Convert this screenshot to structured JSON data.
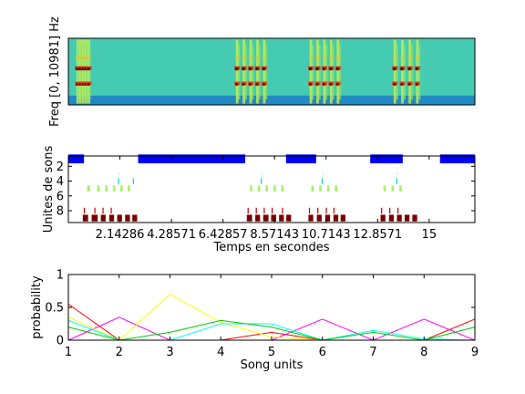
{
  "chart_data": [
    {
      "type": "heatmap",
      "ylabel": "Freq [0, 10981] Hz",
      "colormap": [
        "#0a2a8c",
        "#1f8fd0",
        "#3fc9b8",
        "#7ee07a",
        "#e9f23a",
        "#f29a22",
        "#c81414",
        "#5a0000"
      ],
      "background_level": 0.3,
      "noise_floor_level": 0.12,
      "bursts": [
        {
          "start": 0.2,
          "end": 0.55,
          "calls": 5
        },
        {
          "start": 4.15,
          "end": 5.0,
          "calls": 5
        },
        {
          "start": 6.0,
          "end": 6.85,
          "calls": 5
        },
        {
          "start": 8.1,
          "end": 8.85,
          "calls": 4
        }
      ],
      "xlim": [
        0,
        10.2
      ],
      "ylim": [
        0,
        1
      ]
    },
    {
      "type": "scatter",
      "xlabel": "Temps en secondes",
      "ylabel": "Unites de sons",
      "xticks": [
        2.14286,
        4.28571,
        6.42857,
        8.57143,
        10.7143,
        12.8571,
        15
      ],
      "xtick_labels": [
        "2.14286",
        "4.28571",
        "6.42857",
        "8.57143",
        "10.7143",
        "12.8571",
        "15"
      ],
      "yticks": [
        2,
        4,
        6,
        8
      ],
      "xlim": [
        0,
        16.9
      ],
      "ylim": [
        0.6,
        9.6
      ],
      "series": [
        {
          "unit": 1,
          "color": "#0000ff",
          "height": 1.2,
          "segments": [
            [
              0,
              0.65
            ],
            [
              2.9,
              7.35
            ],
            [
              9.05,
              10.3
            ],
            [
              12.55,
              13.9
            ],
            [
              15.45,
              16.9
            ]
          ]
        },
        {
          "unit": 3,
          "color": "#c8f0ff",
          "height": 0.4,
          "segments": [
            [
              2.1,
              2.12
            ],
            [
              8.03,
              8.05
            ],
            [
              10.56,
              10.58
            ],
            [
              13.65,
              13.67
            ]
          ]
        },
        {
          "unit": 4,
          "color": "#00dfa0",
          "height": 0.8,
          "segments": [
            [
              2.06,
              2.1
            ],
            [
              2.68,
              2.72
            ],
            [
              8.0,
              8.04
            ],
            [
              10.53,
              10.57
            ],
            [
              13.63,
              13.67
            ]
          ]
        },
        {
          "unit": 5,
          "color": "#a8f06a",
          "height": 0.8,
          "segments": [
            [
              0.78,
              0.9
            ],
            [
              1.2,
              1.3
            ],
            [
              1.53,
              1.63
            ],
            [
              1.85,
              1.95
            ],
            [
              2.16,
              2.26
            ],
            [
              2.46,
              2.56
            ],
            [
              7.55,
              7.65
            ],
            [
              7.87,
              7.97
            ],
            [
              8.2,
              8.3
            ],
            [
              8.53,
              8.63
            ],
            [
              8.85,
              8.95
            ],
            [
              10.1,
              10.2
            ],
            [
              10.43,
              10.53
            ],
            [
              10.76,
              10.86
            ],
            [
              11.08,
              11.18
            ],
            [
              13.1,
              13.2
            ],
            [
              13.43,
              13.53
            ],
            [
              13.76,
              13.86
            ]
          ]
        },
        {
          "unit": 8,
          "color": "#c80000",
          "height": 0.8,
          "segments": [
            [
              0.64,
              0.66
            ],
            [
              1.08,
              1.1
            ],
            [
              1.42,
              1.44
            ],
            [
              1.76,
              1.78
            ],
            [
              7.45,
              7.47
            ],
            [
              7.79,
              7.81
            ],
            [
              8.12,
              8.14
            ],
            [
              8.45,
              8.47
            ],
            [
              8.88,
              8.9
            ],
            [
              10.0,
              10.02
            ],
            [
              10.35,
              10.37
            ],
            [
              10.7,
              10.72
            ],
            [
              11.02,
              11.04
            ],
            [
              13.0,
              13.02
            ],
            [
              13.34,
              13.36
            ],
            [
              13.68,
              13.7
            ]
          ]
        },
        {
          "unit": 9,
          "color": "#7a0000",
          "height": 0.9,
          "segments": [
            [
              0.6,
              0.82
            ],
            [
              0.97,
              1.22
            ],
            [
              1.35,
              1.55
            ],
            [
              1.7,
              1.9
            ],
            [
              2.03,
              2.23
            ],
            [
              2.36,
              2.56
            ],
            [
              2.66,
              2.86
            ],
            [
              7.42,
              7.64
            ],
            [
              7.77,
              7.97
            ],
            [
              8.1,
              8.32
            ],
            [
              8.43,
              8.64
            ],
            [
              8.76,
              8.96
            ],
            [
              9.06,
              9.26
            ],
            [
              9.98,
              10.18
            ],
            [
              10.33,
              10.53
            ],
            [
              10.68,
              10.88
            ],
            [
              11.02,
              11.22
            ],
            [
              11.32,
              11.52
            ],
            [
              12.98,
              13.18
            ],
            [
              13.33,
              13.53
            ],
            [
              13.66,
              13.86
            ],
            [
              13.98,
              14.18
            ],
            [
              14.3,
              14.5
            ]
          ]
        }
      ]
    },
    {
      "type": "line",
      "xlabel": "Song units",
      "ylabel": "probability",
      "x": [
        1,
        2,
        3,
        4,
        5,
        6,
        7,
        8,
        9
      ],
      "xlim": [
        1,
        9
      ],
      "ylim": [
        0,
        1
      ],
      "yticks": [
        0,
        0.5,
        1
      ],
      "ytick_labels": [
        "0",
        "0.5",
        "1"
      ],
      "series": [
        {
          "color": "#ff0000",
          "values": [
            0.55,
            0.0,
            0.0,
            0.0,
            0.12,
            0.0,
            0.0,
            0.0,
            0.32
          ]
        },
        {
          "color": "#ff00ff",
          "values": [
            0.0,
            0.35,
            0.0,
            0.0,
            0.0,
            0.32,
            0.0,
            0.32,
            0.0
          ]
        },
        {
          "color": "#ffff00",
          "values": [
            0.35,
            0.0,
            0.7,
            0.27,
            0.05,
            0.0,
            0.0,
            0.0,
            0.0
          ]
        },
        {
          "color": "#00ffff",
          "values": [
            0.3,
            0.0,
            0.0,
            0.25,
            0.25,
            0.0,
            0.15,
            0.02,
            0.0
          ]
        },
        {
          "color": "#00cc00",
          "values": [
            0.2,
            0.0,
            0.12,
            0.3,
            0.2,
            0.0,
            0.12,
            0.0,
            0.2
          ]
        }
      ]
    }
  ]
}
